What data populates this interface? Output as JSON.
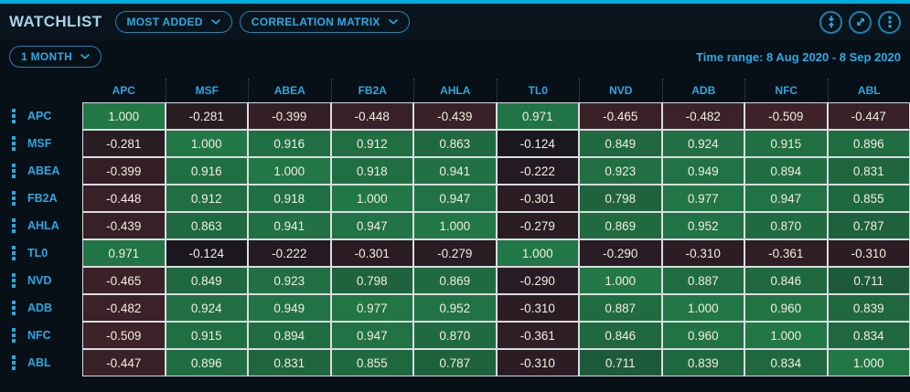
{
  "header": {
    "title": "WATCHLIST",
    "dropdowns": [
      {
        "label": "MOST ADDED"
      },
      {
        "label": "CORRELATION MATRIX"
      }
    ],
    "icon_buttons": [
      {
        "name": "collapse-vertical-icon"
      },
      {
        "name": "expand-icon"
      },
      {
        "name": "kebab-menu-icon"
      }
    ]
  },
  "toolbar": {
    "period": "1 MONTH",
    "time_range": "Time range: 8 Aug 2020 - 8 Sep 2020"
  },
  "colors": {
    "accent_cyan": "#29ABE2",
    "top_strip": "#00ADE0",
    "label_cyan": "#2AA8E0",
    "cell_base": "#0F141C",
    "positive_max": "#227746",
    "negative_max": "#6B3036",
    "cell_border": "#D9DDE0",
    "cell_text": "#F1EEE2"
  },
  "matrix": {
    "type": "heatmap",
    "tickers": [
      "APC",
      "MSF",
      "ABEA",
      "FB2A",
      "AHLA",
      "TL0",
      "NVD",
      "ADB",
      "NFC",
      "ABL"
    ],
    "rows": [
      {
        "ticker": "APC",
        "values": [
          1.0,
          -0.281,
          -0.399,
          -0.448,
          -0.439,
          0.971,
          -0.465,
          -0.482,
          -0.509,
          -0.447
        ]
      },
      {
        "ticker": "MSF",
        "values": [
          -0.281,
          1.0,
          0.916,
          0.912,
          0.863,
          -0.124,
          0.849,
          0.924,
          0.915,
          0.896
        ]
      },
      {
        "ticker": "ABEA",
        "values": [
          -0.399,
          0.916,
          1.0,
          0.918,
          0.941,
          -0.222,
          0.923,
          0.949,
          0.894,
          0.831
        ]
      },
      {
        "ticker": "FB2A",
        "values": [
          -0.448,
          0.912,
          0.918,
          1.0,
          0.947,
          -0.301,
          0.798,
          0.977,
          0.947,
          0.855
        ]
      },
      {
        "ticker": "AHLA",
        "values": [
          -0.439,
          0.863,
          0.941,
          0.947,
          1.0,
          -0.279,
          0.869,
          0.952,
          0.87,
          0.787
        ]
      },
      {
        "ticker": "TL0",
        "values": [
          0.971,
          -0.124,
          -0.222,
          -0.301,
          -0.279,
          1.0,
          -0.29,
          -0.31,
          -0.361,
          -0.31
        ]
      },
      {
        "ticker": "NVD",
        "values": [
          -0.465,
          0.849,
          0.923,
          0.798,
          0.869,
          -0.29,
          1.0,
          0.887,
          0.846,
          0.711
        ]
      },
      {
        "ticker": "ADB",
        "values": [
          -0.482,
          0.924,
          0.949,
          0.977,
          0.952,
          -0.31,
          0.887,
          1.0,
          0.96,
          0.839
        ]
      },
      {
        "ticker": "NFC",
        "values": [
          -0.509,
          0.915,
          0.894,
          0.947,
          0.87,
          -0.361,
          0.846,
          0.96,
          1.0,
          0.834
        ]
      },
      {
        "ticker": "ABL",
        "values": [
          -0.447,
          0.896,
          0.831,
          0.855,
          0.787,
          -0.31,
          0.711,
          0.839,
          0.834,
          1.0
        ]
      }
    ],
    "value_decimals": 3
  }
}
